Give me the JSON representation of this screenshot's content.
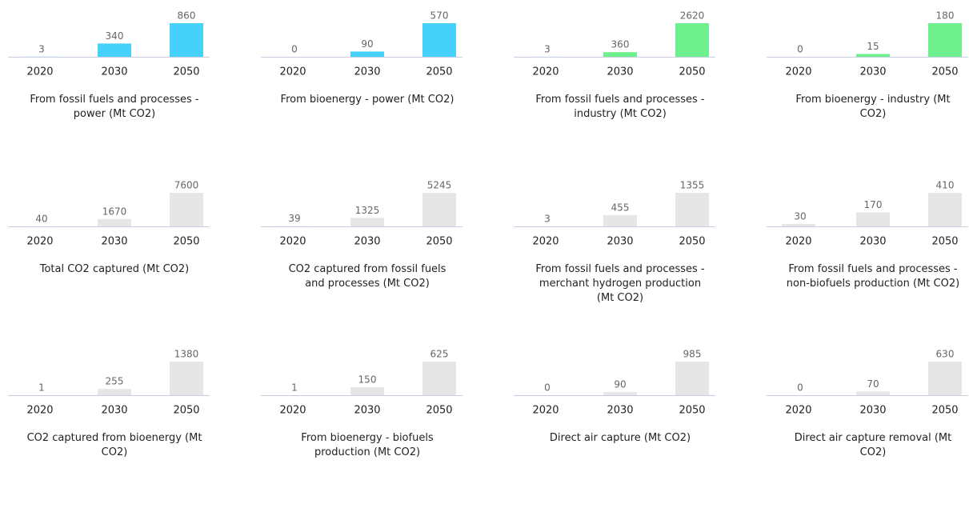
{
  "chart_data": [
    {
      "type": "bar",
      "title": "From fossil fuels and processes - power (Mt CO2)",
      "categories": [
        "2020",
        "2030",
        "2050"
      ],
      "values": [
        3,
        340,
        860
      ],
      "color": "#45d1fa"
    },
    {
      "type": "bar",
      "title": "From bioenergy - power (Mt CO2)",
      "categories": [
        "2020",
        "2030",
        "2050"
      ],
      "values": [
        0,
        90,
        570
      ],
      "color": "#45d1fa"
    },
    {
      "type": "bar",
      "title": "From fossil fuels and processes - industry (Mt CO2)",
      "categories": [
        "2020",
        "2030",
        "2050"
      ],
      "values": [
        3,
        360,
        2620
      ],
      "color": "#6ef08f"
    },
    {
      "type": "bar",
      "title": "From bioenergy - industry (Mt CO2)",
      "categories": [
        "2020",
        "2030",
        "2050"
      ],
      "values": [
        0,
        15,
        180
      ],
      "color": "#6ef08f"
    },
    {
      "type": "bar",
      "title": "Total CO2 captured (Mt CO2)",
      "categories": [
        "2020",
        "2030",
        "2050"
      ],
      "values": [
        40,
        1670,
        7600
      ],
      "color": "#e6e6e6"
    },
    {
      "type": "bar",
      "title": "CO2 captured from fossil fuels and processes (Mt CO2)",
      "categories": [
        "2020",
        "2030",
        "2050"
      ],
      "values": [
        39,
        1325,
        5245
      ],
      "color": "#e6e6e6"
    },
    {
      "type": "bar",
      "title": "From fossil fuels and processes - merchant hydrogen production (Mt CO2)",
      "categories": [
        "2020",
        "2030",
        "2050"
      ],
      "values": [
        3,
        455,
        1355
      ],
      "color": "#e6e6e6"
    },
    {
      "type": "bar",
      "title": "From fossil fuels and processes - non-biofuels production (Mt CO2)",
      "categories": [
        "2020",
        "2030",
        "2050"
      ],
      "values": [
        30,
        170,
        410
      ],
      "color": "#e6e6e6"
    },
    {
      "type": "bar",
      "title": "CO2 captured from bioenergy (Mt CO2)",
      "categories": [
        "2020",
        "2030",
        "2050"
      ],
      "values": [
        1,
        255,
        1380
      ],
      "color": "#e6e6e6"
    },
    {
      "type": "bar",
      "title": "From bioenergy - biofuels production (Mt CO2)",
      "categories": [
        "2020",
        "2030",
        "2050"
      ],
      "values": [
        1,
        150,
        625
      ],
      "color": "#e6e6e6"
    },
    {
      "type": "bar",
      "title": "Direct air capture (Mt CO2)",
      "categories": [
        "2020",
        "2030",
        "2050"
      ],
      "values": [
        0,
        90,
        985
      ],
      "color": "#e6e6e6"
    },
    {
      "type": "bar",
      "title": "Direct air capture removal (Mt CO2)",
      "categories": [
        "2020",
        "2030",
        "2050"
      ],
      "values": [
        0,
        70,
        630
      ],
      "color": "#e6e6e6"
    }
  ]
}
